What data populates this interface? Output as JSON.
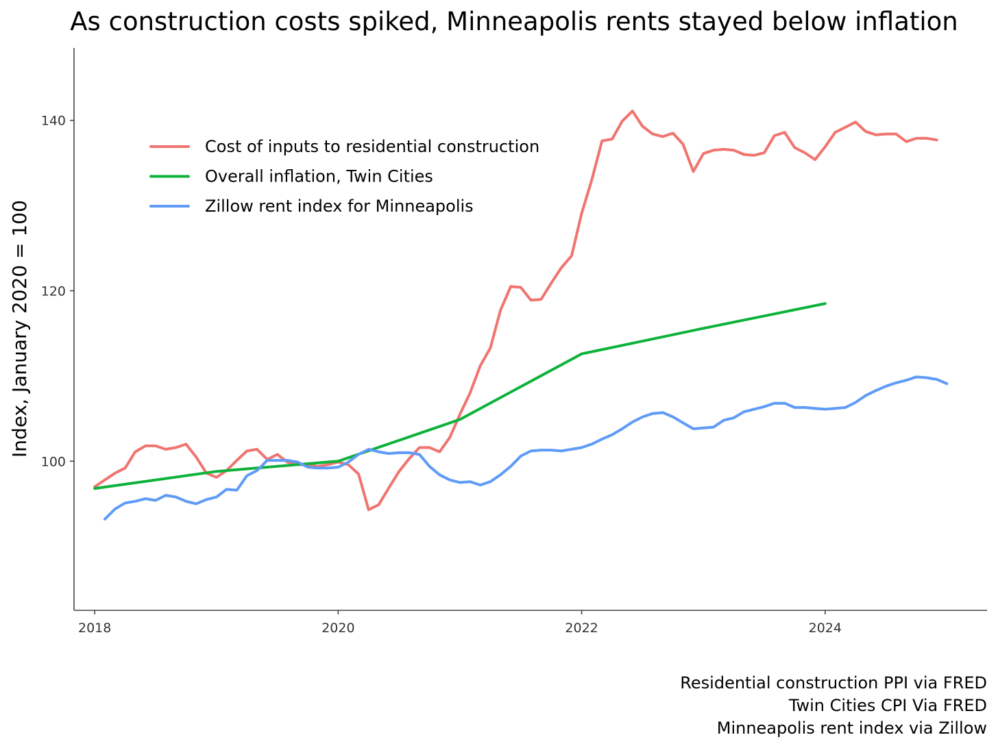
{
  "chart_data": {
    "type": "line",
    "title": "As construction costs spiked, Minneapolis rents stayed below inflation",
    "xlabel": "",
    "ylabel": "Index, January 2020 = 100",
    "xlim": [
      2017.83,
      2025.33
    ],
    "ylim": [
      82.5,
      148.5
    ],
    "x_ticks": [
      2018,
      2020,
      2022,
      2024
    ],
    "x_tick_labels": [
      "2018",
      "2020",
      "2022",
      "2024"
    ],
    "y_ticks": [
      100,
      120,
      140
    ],
    "y_tick_labels": [
      "100",
      "120",
      "140"
    ],
    "grid": false,
    "legend_position": "top-left",
    "series": [
      {
        "name": "Cost of inputs to residential construction",
        "color": "#F07470",
        "x": [
          2018.0,
          2018.083,
          2018.167,
          2018.25,
          2018.333,
          2018.417,
          2018.5,
          2018.583,
          2018.667,
          2018.75,
          2018.833,
          2018.917,
          2019.0,
          2019.083,
          2019.167,
          2019.25,
          2019.333,
          2019.417,
          2019.5,
          2019.583,
          2019.667,
          2019.75,
          2019.833,
          2019.917,
          2020.0,
          2020.083,
          2020.167,
          2020.25,
          2020.333,
          2020.417,
          2020.5,
          2020.583,
          2020.667,
          2020.75,
          2020.833,
          2020.917,
          2021.0,
          2021.083,
          2021.167,
          2021.25,
          2021.333,
          2021.417,
          2021.5,
          2021.583,
          2021.667,
          2021.75,
          2021.833,
          2021.917,
          2022.0,
          2022.083,
          2022.167,
          2022.25,
          2022.333,
          2022.417,
          2022.5,
          2022.583,
          2022.667,
          2022.75,
          2022.833,
          2022.917,
          2023.0,
          2023.083,
          2023.167,
          2023.25,
          2023.333,
          2023.417,
          2023.5,
          2023.583,
          2023.667,
          2023.75,
          2023.833,
          2023.917,
          2024.0,
          2024.083,
          2024.167,
          2024.25,
          2024.333,
          2024.417,
          2024.5,
          2024.583,
          2024.667,
          2024.75,
          2024.833,
          2024.917
        ],
        "values": [
          97.0,
          97.8,
          98.6,
          99.2,
          101.1,
          101.8,
          101.8,
          101.4,
          101.6,
          102.0,
          100.5,
          98.6,
          98.1,
          98.9,
          100.1,
          101.2,
          101.4,
          100.2,
          100.8,
          99.9,
          99.6,
          99.6,
          99.4,
          99.6,
          99.9,
          99.6,
          98.5,
          94.3,
          94.9,
          96.9,
          98.8,
          100.3,
          101.6,
          101.6,
          101.1,
          102.8,
          105.5,
          108.0,
          111.2,
          113.3,
          117.7,
          120.5,
          120.4,
          118.9,
          119.0,
          120.9,
          122.7,
          124.1,
          129.1,
          133.0,
          137.6,
          137.8,
          139.9,
          141.1,
          139.3,
          138.4,
          138.1,
          138.5,
          137.2,
          134.0,
          136.1,
          136.5,
          136.6,
          136.5,
          136.0,
          135.9,
          136.2,
          138.2,
          138.6,
          136.8,
          136.2,
          135.4,
          136.9,
          138.6,
          139.2,
          139.8,
          138.7,
          138.3,
          138.4,
          138.4,
          137.5,
          137.9,
          137.9,
          137.7
        ]
      },
      {
        "name": "Overall inflation, Twin Cities",
        "color": "#0DB23A",
        "x": [
          2018.0,
          2019.0,
          2020.0,
          2021.0,
          2022.0,
          2023.0,
          2024.0
        ],
        "values": [
          96.8,
          98.8,
          100.0,
          104.9,
          112.6,
          115.6,
          118.5
        ]
      },
      {
        "name": "Zillow rent index for Minneapolis",
        "color": "#5F9BF7",
        "x": [
          2018.083,
          2018.167,
          2018.25,
          2018.333,
          2018.417,
          2018.5,
          2018.583,
          2018.667,
          2018.75,
          2018.833,
          2018.917,
          2019.0,
          2019.083,
          2019.167,
          2019.25,
          2019.333,
          2019.417,
          2019.5,
          2019.583,
          2019.667,
          2019.75,
          2019.833,
          2019.917,
          2020.0,
          2020.083,
          2020.167,
          2020.25,
          2020.333,
          2020.417,
          2020.5,
          2020.583,
          2020.667,
          2020.75,
          2020.833,
          2020.917,
          2021.0,
          2021.083,
          2021.167,
          2021.25,
          2021.333,
          2021.417,
          2021.5,
          2021.583,
          2021.667,
          2021.75,
          2021.833,
          2021.917,
          2022.0,
          2022.083,
          2022.167,
          2022.25,
          2022.333,
          2022.417,
          2022.5,
          2022.583,
          2022.667,
          2022.75,
          2022.833,
          2022.917,
          2023.0,
          2023.083,
          2023.167,
          2023.25,
          2023.333,
          2023.417,
          2023.5,
          2023.583,
          2023.667,
          2023.75,
          2023.833,
          2023.917,
          2024.0,
          2024.083,
          2024.167,
          2024.25,
          2024.333,
          2024.417,
          2024.5,
          2024.583,
          2024.667,
          2024.75,
          2024.833,
          2024.917,
          2025.0
        ],
        "values": [
          93.2,
          94.4,
          95.1,
          95.3,
          95.6,
          95.4,
          96.0,
          95.8,
          95.3,
          95.0,
          95.5,
          95.8,
          96.7,
          96.6,
          98.3,
          98.9,
          100.1,
          100.1,
          100.1,
          99.9,
          99.3,
          99.2,
          99.2,
          99.3,
          99.9,
          100.8,
          101.4,
          101.1,
          100.9,
          101.0,
          101.0,
          100.8,
          99.4,
          98.4,
          97.8,
          97.5,
          97.6,
          97.2,
          97.6,
          98.4,
          99.4,
          100.6,
          101.2,
          101.3,
          101.3,
          101.2,
          101.4,
          101.6,
          102.0,
          102.6,
          103.1,
          103.8,
          104.6,
          105.2,
          105.6,
          105.7,
          105.2,
          104.5,
          103.8,
          103.9,
          104.0,
          104.8,
          105.1,
          105.8,
          106.1,
          106.4,
          106.8,
          106.8,
          106.3,
          106.3,
          106.2,
          106.1,
          106.2,
          106.3,
          106.9,
          107.7,
          108.3,
          108.8,
          109.2,
          109.5,
          109.9,
          109.8,
          109.6,
          109.1
        ]
      }
    ],
    "caption": [
      "Residential construction PPI via FRED",
      "Twin Cities CPI Via FRED",
      "Minneapolis rent index via Zillow"
    ]
  }
}
